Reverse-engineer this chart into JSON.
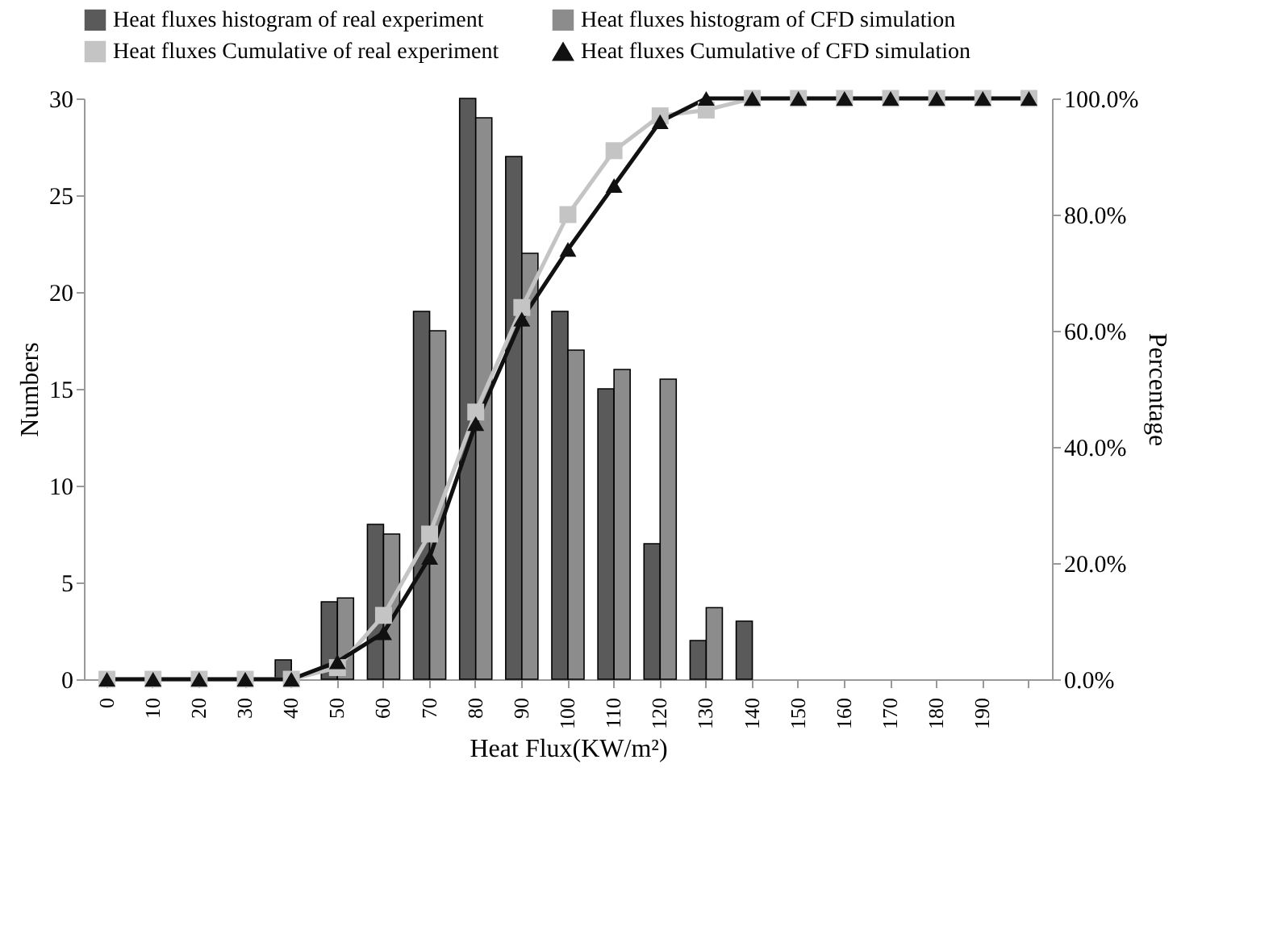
{
  "chart_data": {
    "type": "bar",
    "xlabel": "Heat Flux(KW/m²)",
    "ylabel": "Numbers",
    "y2label": "Percentage",
    "categories": [
      "0",
      "10",
      "20",
      "30",
      "40",
      "50",
      "60",
      "70",
      "80",
      "90",
      "100",
      "110",
      "120",
      "130",
      "140",
      "150",
      "160",
      "170",
      "180",
      "190",
      null
    ],
    "series": [
      {
        "name": "Heat fluxes histogram of real experiment",
        "type": "bar",
        "color": "#5a5a5a",
        "values": [
          0,
          0,
          0,
          0,
          1,
          4,
          8,
          19,
          30,
          27,
          19,
          15,
          7,
          2,
          3,
          0,
          0,
          0,
          0,
          0,
          0
        ]
      },
      {
        "name": "Heat fluxes histogram of CFD simulation",
        "type": "bar",
        "color": "#8c8c8c",
        "values": [
          0,
          0,
          0,
          0,
          0,
          4.2,
          7.5,
          18,
          29,
          22,
          17,
          16,
          15.5,
          3.7,
          0,
          0,
          0,
          0,
          0,
          0,
          0
        ]
      },
      {
        "name": "Heat fluxes Cumulative of real experiment",
        "type": "line",
        "axis": "y2",
        "marker": "square",
        "color": "#c4c4c4",
        "values": [
          0,
          0,
          0,
          0,
          0,
          2,
          11,
          25,
          46,
          64,
          80,
          91,
          97,
          98,
          100,
          100,
          100,
          100,
          100,
          100,
          100
        ]
      },
      {
        "name": "Heat fluxes Cumulative of CFD simulation",
        "type": "line",
        "axis": "y2",
        "marker": "triangle",
        "color": "#111111",
        "values": [
          0,
          0,
          0,
          0,
          0,
          3,
          8,
          21,
          44,
          62,
          74,
          85,
          96,
          100,
          100,
          100,
          100,
          100,
          100,
          100,
          100
        ]
      }
    ],
    "ylim": [
      0,
      30
    ],
    "yticks": [
      0,
      5,
      10,
      15,
      20,
      25,
      30
    ],
    "y2lim": [
      0,
      100
    ],
    "y2ticks": [
      {
        "value": 0,
        "label": "0.0%"
      },
      {
        "value": 20,
        "label": "20.0%"
      },
      {
        "value": 40,
        "label": "40.0%"
      },
      {
        "value": 60,
        "label": "60.0%"
      },
      {
        "value": 80,
        "label": "80.0%"
      },
      {
        "value": 100,
        "label": "100.0%"
      }
    ],
    "grid": false,
    "legend": "top"
  }
}
